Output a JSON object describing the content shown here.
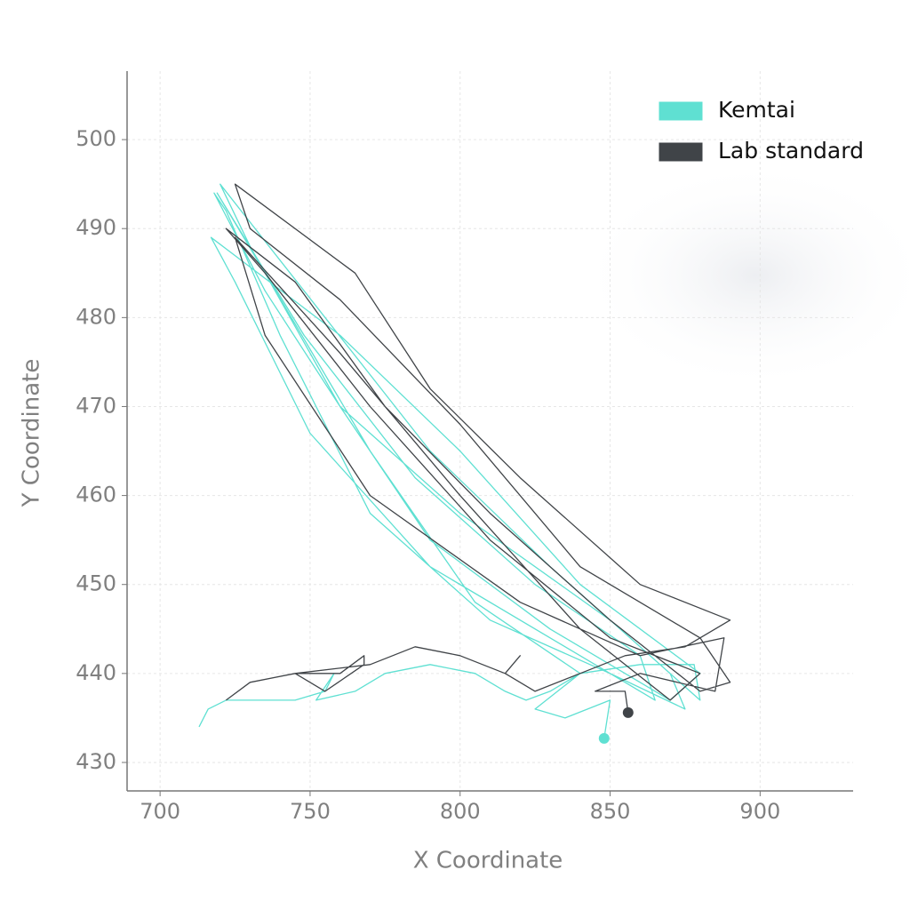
{
  "chart_data": {
    "type": "line",
    "xlabel": "X Coordinate",
    "ylabel": "Y Coordinate",
    "xlim": [
      689,
      931
    ],
    "ylim": [
      426.8,
      507.7
    ],
    "xticks": [
      700,
      750,
      800,
      850,
      900
    ],
    "yticks": [
      430,
      440,
      450,
      460,
      470,
      480,
      490,
      500
    ],
    "grid": true,
    "legend": "upper right",
    "series": [
      {
        "name": "Kemtai",
        "color": "#5fe0d2",
        "x": [
          713,
          716,
          722,
          735,
          745,
          755,
          758,
          752,
          765,
          775,
          790,
          805,
          815,
          822,
          830,
          840,
          860,
          878,
          880,
          850,
          800,
          760,
          735,
          718,
          722,
          740,
          770,
          810,
          850,
          875,
          870,
          830,
          790,
          755,
          720,
          730,
          760,
          790,
          830,
          870,
          880,
          840,
          800,
          760,
          717,
          725,
          750,
          790,
          835,
          865,
          860,
          825,
          785,
          748,
          719,
          735,
          770,
          805,
          840,
          825,
          835,
          850,
          848
        ],
        "y": [
          434,
          436,
          437,
          437,
          437,
          438,
          440,
          437,
          438,
          440,
          441,
          440,
          438,
          437,
          438,
          440,
          441,
          441,
          437,
          446,
          458,
          470,
          483,
          494,
          492,
          478,
          458,
          446,
          440,
          436,
          440,
          452,
          465,
          480,
          495,
          488,
          470,
          455,
          445,
          437,
          440,
          450,
          465,
          478,
          489,
          484,
          467,
          452,
          443,
          437,
          442,
          450,
          462,
          478,
          494,
          485,
          465,
          448,
          440,
          436,
          435,
          437,
          432.7
        ]
      },
      {
        "name": "Lab standard",
        "color": "#404448",
        "x": [
          722,
          730,
          745,
          760,
          768,
          768,
          755,
          745,
          770,
          785,
          800,
          815,
          820,
          815,
          825,
          840,
          855,
          875,
          890,
          860,
          820,
          790,
          765,
          725,
          730,
          760,
          800,
          840,
          880,
          890,
          880,
          850,
          810,
          775,
          745,
          722,
          735,
          770,
          810,
          850,
          880,
          870,
          840,
          800,
          760,
          725,
          735,
          770,
          820,
          860,
          888,
          885,
          860,
          845,
          855,
          856
        ],
        "y": [
          437,
          439,
          440,
          440,
          442,
          441,
          438,
          440,
          441,
          443,
          442,
          440,
          442,
          440,
          438,
          440,
          442,
          443,
          446,
          450,
          462,
          472,
          485,
          495,
          490,
          482,
          468,
          452,
          444,
          439,
          438,
          446,
          458,
          470,
          484,
          490,
          485,
          470,
          455,
          444,
          440,
          437,
          445,
          460,
          476,
          489,
          478,
          460,
          448,
          442,
          444,
          438,
          440,
          438,
          438,
          435.6
        ]
      }
    ]
  }
}
